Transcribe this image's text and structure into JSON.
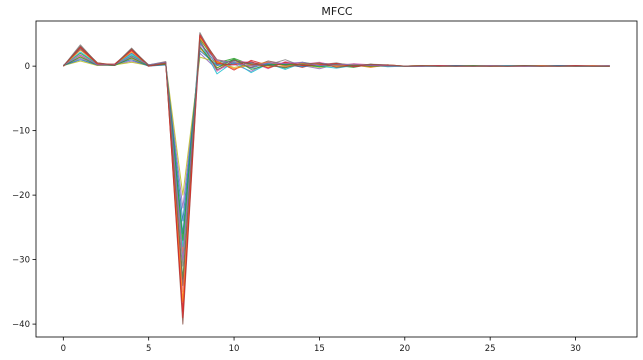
{
  "chart_data": {
    "type": "line",
    "title": "MFCC",
    "xlabel": "",
    "ylabel": "",
    "xlim": [
      -1.6,
      33.6
    ],
    "ylim": [
      -42,
      7
    ],
    "grid": false,
    "legend": "none",
    "xticks": [
      0,
      5,
      10,
      15,
      20,
      25,
      30
    ],
    "yticks": [
      0,
      -10,
      -20,
      -30,
      -40
    ],
    "x": [
      0,
      1,
      2,
      3,
      4,
      5,
      6,
      7,
      8,
      9,
      10,
      11,
      12,
      13,
      14,
      15,
      16,
      17,
      18,
      19,
      20,
      21,
      22,
      23,
      24,
      25,
      26,
      27,
      28,
      29,
      30,
      31,
      32
    ],
    "series": [
      {
        "color": "#1f77b4",
        "values": [
          0.1,
          2.6,
          0.4,
          0.2,
          2.0,
          0.1,
          0.3,
          -26.0,
          3.6,
          0.2,
          0.9,
          -0.3,
          0.5,
          0.1,
          0.4,
          0.0,
          0.3,
          0.1,
          0.2,
          0.1,
          0.0,
          0.0,
          0.1,
          0.0,
          0.0,
          0.1,
          0.0,
          0.0,
          0.1,
          0.0,
          0.0,
          0.1,
          0.0
        ]
      },
      {
        "color": "#ff7f0e",
        "values": [
          0.0,
          1.5,
          0.2,
          0.3,
          1.2,
          0.0,
          0.5,
          -29.0,
          2.8,
          -0.2,
          0.6,
          0.4,
          -0.2,
          0.5,
          0.2,
          0.3,
          -0.1,
          0.2,
          0.0,
          0.2,
          0.0,
          0.1,
          0.0,
          0.0,
          0.1,
          0.0,
          0.0,
          0.1,
          0.0,
          0.0,
          0.1,
          0.0,
          0.0
        ]
      },
      {
        "color": "#2ca02c",
        "values": [
          0.1,
          2.0,
          0.3,
          0.1,
          1.6,
          0.2,
          0.4,
          -33.0,
          4.2,
          0.5,
          1.2,
          0.2,
          0.3,
          -0.3,
          0.6,
          0.2,
          0.1,
          -0.2,
          0.3,
          0.0,
          0.0,
          0.0,
          0.0,
          0.1,
          0.0,
          0.0,
          0.1,
          0.0,
          0.0,
          0.1,
          0.0,
          0.0,
          0.0
        ]
      },
      {
        "color": "#d62728",
        "values": [
          0.0,
          3.0,
          0.5,
          0.2,
          2.4,
          0.0,
          0.6,
          -38.0,
          5.0,
          0.8,
          -0.6,
          0.9,
          0.1,
          0.4,
          -0.2,
          0.5,
          0.2,
          0.3,
          -0.1,
          0.1,
          0.0,
          0.0,
          0.1,
          0.0,
          0.0,
          0.1,
          0.0,
          0.0,
          0.0,
          0.1,
          0.0,
          0.0,
          0.0
        ]
      },
      {
        "color": "#9467bd",
        "values": [
          0.1,
          1.2,
          0.1,
          0.2,
          0.8,
          0.1,
          0.2,
          -22.0,
          2.0,
          -0.5,
          0.3,
          -0.8,
          0.6,
          0.2,
          0.1,
          -0.4,
          0.3,
          0.0,
          0.2,
          0.0,
          0.0,
          0.1,
          0.0,
          0.0,
          0.0,
          0.0,
          0.1,
          0.0,
          0.1,
          0.0,
          0.0,
          0.0,
          0.1
        ]
      },
      {
        "color": "#8c564b",
        "values": [
          0.0,
          2.8,
          0.3,
          0.3,
          2.6,
          0.2,
          0.7,
          -40.0,
          4.6,
          1.0,
          0.5,
          -0.2,
          0.8,
          0.3,
          0.5,
          0.1,
          0.4,
          0.2,
          0.1,
          0.1,
          0.0,
          0.0,
          0.0,
          0.1,
          0.0,
          0.1,
          0.0,
          0.0,
          0.0,
          0.0,
          0.1,
          0.0,
          0.0
        ]
      },
      {
        "color": "#e377c2",
        "values": [
          0.1,
          1.8,
          0.2,
          0.1,
          1.4,
          0.1,
          0.4,
          -35.0,
          3.2,
          -0.8,
          0.8,
          0.6,
          -0.4,
          0.7,
          0.3,
          0.6,
          0.0,
          0.4,
          0.2,
          0.2,
          0.0,
          0.0,
          0.1,
          0.0,
          0.0,
          0.0,
          0.0,
          0.1,
          0.0,
          0.0,
          0.0,
          0.1,
          0.0
        ]
      },
      {
        "color": "#7f7f7f",
        "values": [
          0.0,
          3.3,
          0.4,
          0.2,
          2.8,
          0.0,
          0.5,
          -31.0,
          5.2,
          0.3,
          1.0,
          0.1,
          0.2,
          1.0,
          0.0,
          0.2,
          0.5,
          0.0,
          0.3,
          0.1,
          0.0,
          0.0,
          0.0,
          0.0,
          0.1,
          0.0,
          0.0,
          0.0,
          0.1,
          0.0,
          0.0,
          0.0,
          0.0
        ]
      },
      {
        "color": "#bcbd22",
        "values": [
          0.1,
          0.8,
          0.1,
          0.2,
          0.6,
          0.1,
          0.3,
          -20.0,
          1.4,
          0.6,
          -0.2,
          0.3,
          0.0,
          -0.1,
          0.2,
          -0.2,
          0.1,
          0.3,
          0.0,
          0.0,
          0.0,
          0.1,
          0.0,
          0.0,
          0.0,
          0.1,
          0.0,
          0.0,
          0.0,
          0.0,
          0.0,
          0.0,
          0.1
        ]
      },
      {
        "color": "#17becf",
        "values": [
          0.0,
          2.2,
          0.3,
          0.1,
          1.8,
          0.2,
          0.6,
          -28.0,
          3.8,
          -1.2,
          0.7,
          -1.0,
          0.4,
          -0.5,
          0.5,
          0.0,
          -0.3,
          0.1,
          0.2,
          -0.1,
          0.0,
          0.0,
          0.0,
          0.0,
          0.0,
          0.0,
          0.1,
          0.0,
          0.0,
          0.1,
          0.0,
          0.0,
          0.0
        ]
      },
      {
        "color": "#1f77b4",
        "values": [
          0.1,
          1.0,
          0.2,
          0.3,
          1.0,
          0.0,
          0.2,
          -24.0,
          2.4,
          0.1,
          0.4,
          0.5,
          0.3,
          0.2,
          -0.1,
          0.4,
          0.2,
          0.0,
          0.1,
          0.1,
          0.0,
          0.0,
          0.0,
          0.1,
          0.0,
          0.0,
          0.0,
          0.0,
          0.0,
          0.1,
          0.0,
          0.0,
          0.0
        ]
      },
      {
        "color": "#ff7f0e",
        "values": [
          0.0,
          2.5,
          0.4,
          0.2,
          2.2,
          0.1,
          0.5,
          -36.5,
          4.4,
          0.7,
          -0.4,
          0.2,
          0.6,
          0.0,
          0.4,
          0.3,
          0.0,
          0.2,
          -0.2,
          0.2,
          0.0,
          0.1,
          0.0,
          0.0,
          0.0,
          0.0,
          0.0,
          0.0,
          0.1,
          0.0,
          0.0,
          0.1,
          0.0
        ]
      },
      {
        "color": "#2ca02c",
        "values": [
          0.1,
          1.4,
          0.2,
          0.1,
          1.3,
          0.1,
          0.3,
          -27.0,
          3.0,
          -0.3,
          1.1,
          -0.5,
          0.2,
          0.3,
          0.2,
          -0.1,
          0.3,
          0.1,
          0.0,
          0.0,
          0.0,
          0.0,
          0.0,
          0.0,
          0.1,
          0.0,
          0.0,
          0.1,
          0.0,
          0.0,
          0.0,
          0.0,
          0.0
        ]
      },
      {
        "color": "#d62728",
        "values": [
          0.0,
          2.9,
          0.3,
          0.3,
          2.5,
          0.0,
          0.4,
          -39.0,
          4.8,
          0.4,
          0.2,
          0.7,
          -0.3,
          0.6,
          0.1,
          0.2,
          0.4,
          -0.1,
          0.2,
          0.1,
          0.0,
          0.0,
          0.1,
          0.0,
          0.0,
          0.0,
          0.0,
          0.0,
          0.0,
          0.0,
          0.1,
          0.0,
          0.0
        ]
      },
      {
        "color": "#9467bd",
        "values": [
          0.1,
          1.7,
          0.2,
          0.2,
          1.5,
          0.2,
          0.6,
          -30.0,
          3.4,
          0.9,
          0.5,
          0.0,
          0.5,
          0.4,
          0.6,
          0.1,
          0.2,
          0.3,
          0.1,
          0.0,
          0.0,
          0.0,
          0.0,
          0.0,
          0.0,
          0.1,
          0.0,
          0.0,
          0.0,
          0.0,
          0.0,
          0.0,
          0.1
        ]
      },
      {
        "color": "#8c564b",
        "values": [
          0.0,
          3.1,
          0.5,
          0.1,
          2.7,
          0.1,
          0.5,
          -34.0,
          4.0,
          -0.6,
          0.9,
          0.3,
          0.1,
          -0.2,
          0.3,
          0.5,
          -0.2,
          0.1,
          0.3,
          0.2,
          0.0,
          0.1,
          0.0,
          0.0,
          0.0,
          0.0,
          0.0,
          0.1,
          0.0,
          0.0,
          0.0,
          0.0,
          0.0
        ]
      }
    ]
  }
}
